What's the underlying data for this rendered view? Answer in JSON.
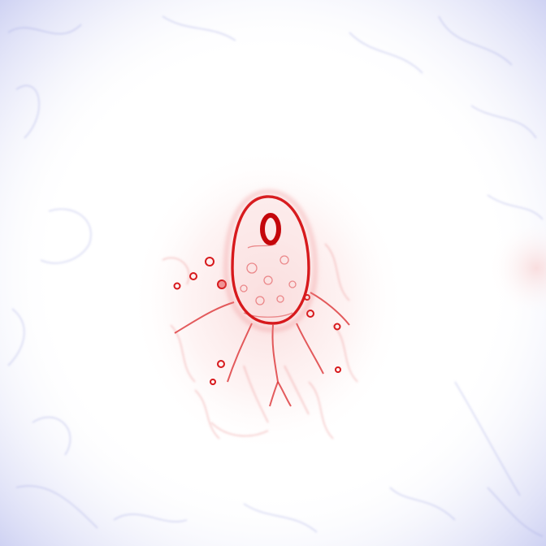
{
  "image": {
    "subject": "saliency-heatmap",
    "colors": {
      "background": "#ffffff",
      "positive": "#d7191c",
      "positive_light": "#f4a6a6",
      "negative": "#3b4cc0",
      "negative_light": "#c9ccf0"
    }
  }
}
